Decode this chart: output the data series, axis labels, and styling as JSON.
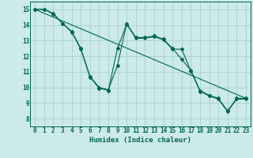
{
  "xlabel": "Humidex (Indice chaleur)",
  "background_color": "#cceae8",
  "grid_color": "#aad4d0",
  "line_color": "#006655",
  "xlim": [
    -0.5,
    23.5
  ],
  "ylim": [
    7.5,
    15.5
  ],
  "xticks": [
    0,
    1,
    2,
    3,
    4,
    5,
    6,
    7,
    8,
    9,
    10,
    11,
    12,
    13,
    14,
    15,
    16,
    17,
    18,
    19,
    20,
    21,
    22,
    23
  ],
  "yticks": [
    8,
    9,
    10,
    11,
    12,
    13,
    14,
    15
  ],
  "series1": [
    15.0,
    15.0,
    14.7,
    14.1,
    13.6,
    12.5,
    10.7,
    10.0,
    9.85,
    11.4,
    14.1,
    13.2,
    13.2,
    13.3,
    13.1,
    12.5,
    11.8,
    11.1,
    9.8,
    9.5,
    9.3,
    8.5,
    9.3,
    9.3
  ],
  "series2": [
    15.0,
    15.0,
    14.75,
    14.1,
    13.55,
    12.45,
    10.65,
    9.95,
    9.8,
    12.5,
    14.05,
    13.15,
    13.15,
    13.25,
    13.05,
    12.45,
    12.45,
    11.05,
    9.75,
    9.45,
    9.25,
    8.45,
    9.25,
    9.25
  ],
  "trend_x": [
    0,
    23
  ],
  "trend_y": [
    15.0,
    9.3
  ]
}
